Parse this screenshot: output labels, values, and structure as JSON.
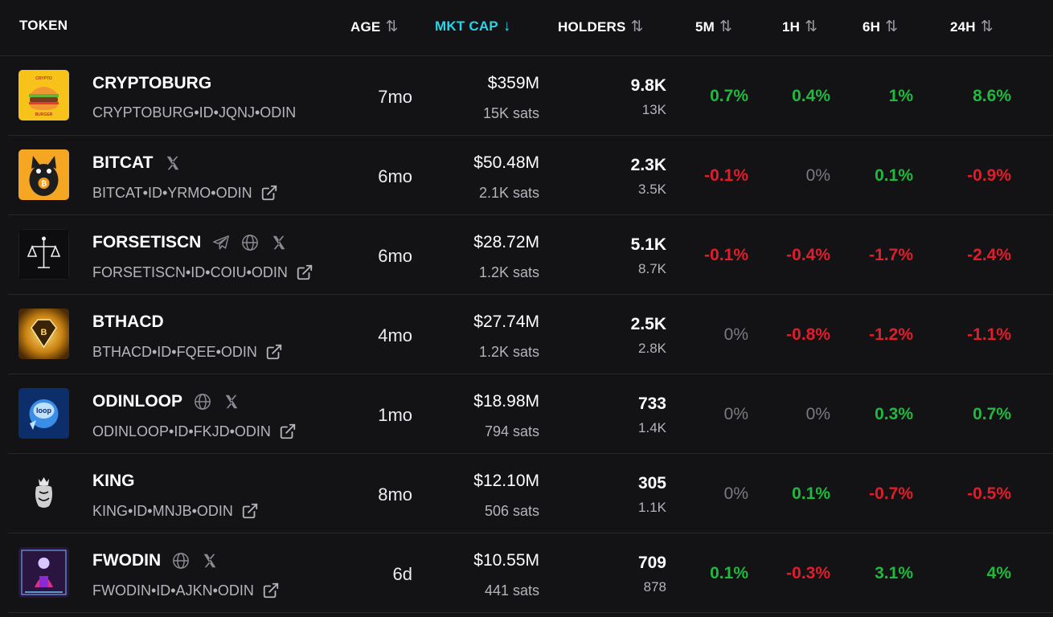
{
  "header": {
    "token": "TOKEN",
    "age": "AGE",
    "mkt_cap": "MKT CAP",
    "holders": "HOLDERS",
    "m5": "5M",
    "h1": "1H",
    "h6": "6H",
    "h24": "24H",
    "sort_icon": "⇅",
    "sort_active_icon": "↓",
    "accent_color": "#2bd3e8"
  },
  "rows": [
    {
      "name": "CRYPTOBURG",
      "ticker": "CRYPTOBURG•ID•JQNJ•ODIN",
      "age": "7mo",
      "mcap": "$359M",
      "sats": "15K sats",
      "holders": "9.8K",
      "holders_sub": "13K",
      "m5": "0.7%",
      "h1": "0.4%",
      "h6": "1%",
      "h24": "8.6%",
      "icons": [],
      "logo": "burger-logo"
    },
    {
      "name": "BITCAT",
      "ticker": "BITCAT•ID•YRMO•ODIN",
      "age": "6mo",
      "mcap": "$50.48M",
      "sats": "2.1K sats",
      "holders": "2.3K",
      "holders_sub": "3.5K",
      "m5": "-0.1%",
      "h1": "0%",
      "h6": "0.1%",
      "h24": "-0.9%",
      "icons": [
        "x-icon"
      ],
      "logo": "cat-logo"
    },
    {
      "name": "FORSETISCN",
      "ticker": "FORSETISCN•ID•COIU•ODIN",
      "age": "6mo",
      "mcap": "$28.72M",
      "sats": "1.2K sats",
      "holders": "5.1K",
      "holders_sub": "8.7K",
      "m5": "-0.1%",
      "h1": "-0.4%",
      "h6": "-1.7%",
      "h24": "-2.4%",
      "icons": [
        "telegram-icon",
        "globe-icon",
        "x-icon"
      ],
      "logo": "scales-logo"
    },
    {
      "name": "BTHACD",
      "ticker": "BTHACD•ID•FQEE•ODIN",
      "age": "4mo",
      "mcap": "$27.74M",
      "sats": "1.2K sats",
      "holders": "2.5K",
      "holders_sub": "2.8K",
      "m5": "0%",
      "h1": "-0.8%",
      "h6": "-1.2%",
      "h24": "-1.1%",
      "icons": [],
      "logo": "diamond-logo"
    },
    {
      "name": "ODINLOOP",
      "ticker": "ODINLOOP•ID•FKJD•ODIN",
      "age": "1mo",
      "mcap": "$18.98M",
      "sats": "794 sats",
      "holders": "733",
      "holders_sub": "1.4K",
      "m5": "0%",
      "h1": "0%",
      "h6": "0.3%",
      "h24": "0.7%",
      "icons": [
        "globe-icon",
        "x-icon"
      ],
      "logo": "loop-logo"
    },
    {
      "name": "KING",
      "ticker": "KING•ID•MNJB•ODIN",
      "age": "8mo",
      "mcap": "$12.10M",
      "sats": "506 sats",
      "holders": "305",
      "holders_sub": "1.1K",
      "m5": "0%",
      "h1": "0.1%",
      "h6": "-0.7%",
      "h24": "-0.5%",
      "icons": [],
      "logo": "king-logo"
    },
    {
      "name": "FWODIN",
      "ticker": "FWODIN•ID•AJKN•ODIN",
      "age": "6d",
      "mcap": "$10.55M",
      "sats": "441 sats",
      "holders": "709",
      "holders_sub": "878",
      "m5": "0.1%",
      "h1": "-0.3%",
      "h6": "3.1%",
      "h24": "4%",
      "icons": [
        "globe-icon",
        "x-icon"
      ],
      "logo": "fwodin-logo"
    }
  ],
  "colors": {
    "positive": "#1fb93c",
    "negative": "#e11d2a",
    "neutral": "#7a7a82"
  }
}
